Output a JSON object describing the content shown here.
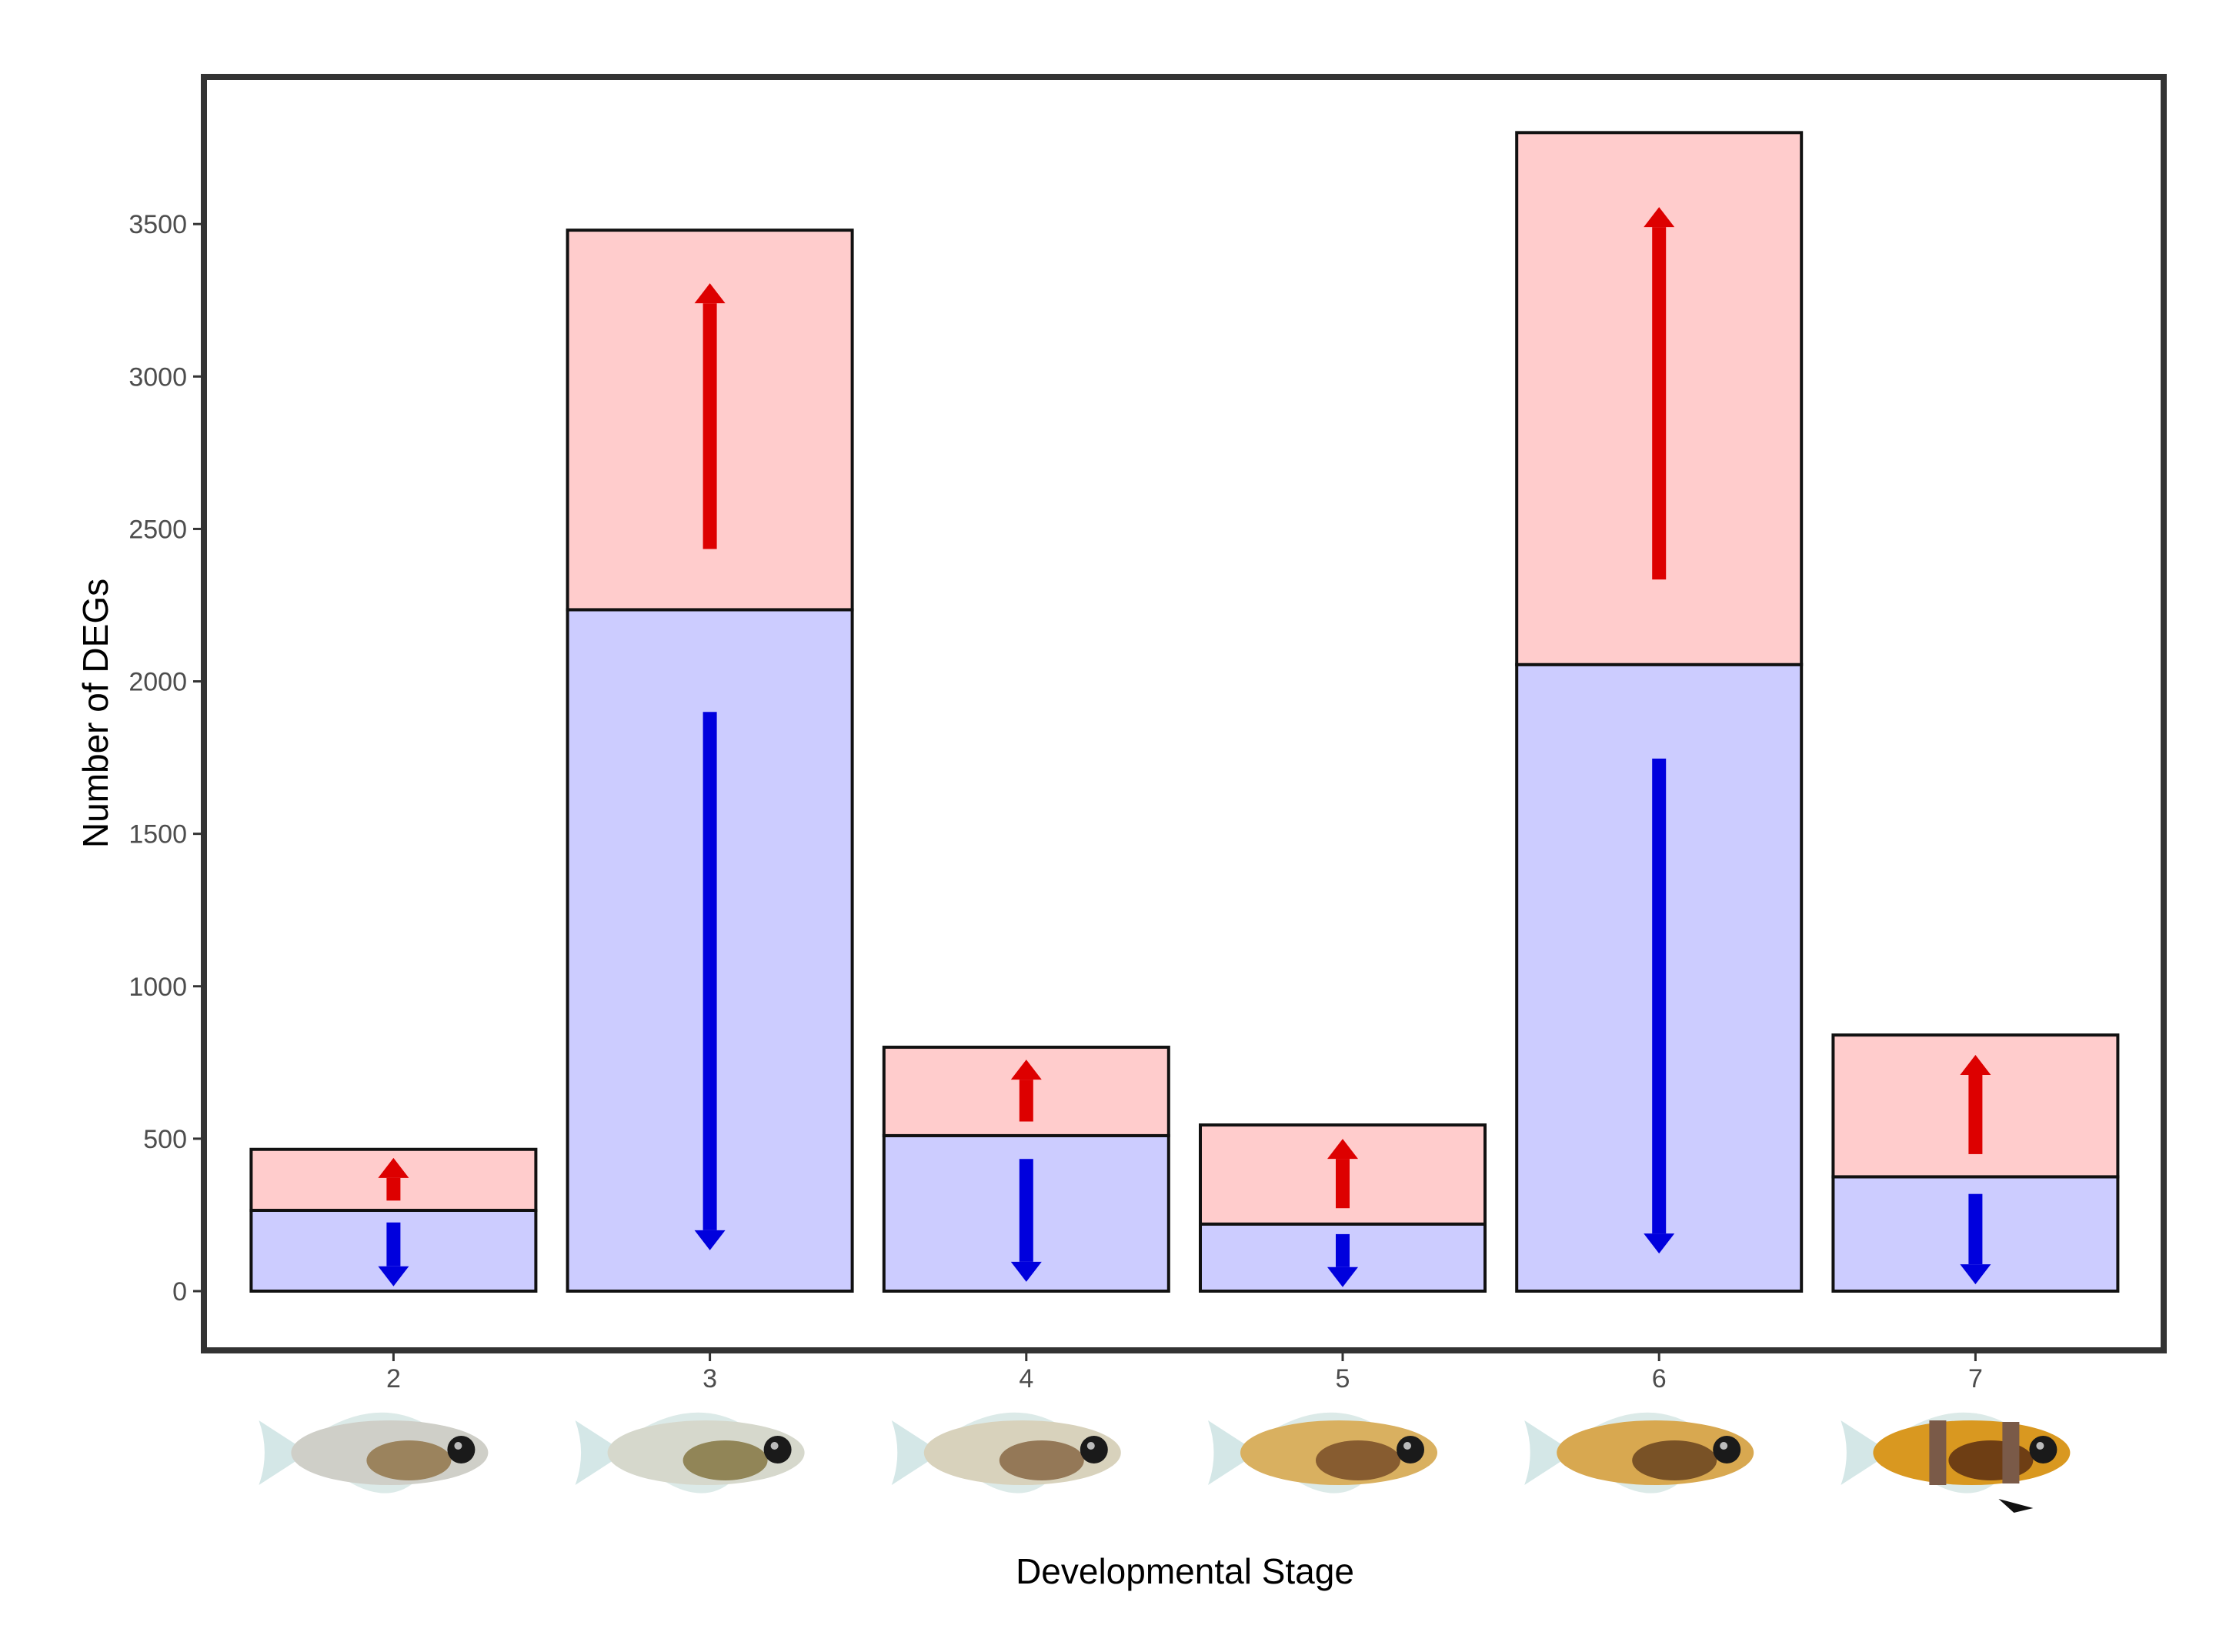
{
  "chart_data": {
    "type": "bar",
    "stacked": true,
    "title": "",
    "xlabel": "Developmental Stage",
    "ylabel": "Number of DEGs",
    "categories": [
      "2",
      "3",
      "4",
      "5",
      "6",
      "7"
    ],
    "ylim": [
      -200,
      4000
    ],
    "yticks": [
      0,
      500,
      1000,
      1500,
      2000,
      2500,
      3000,
      3500
    ],
    "grid": false,
    "legend": "none",
    "series": [
      {
        "direction": "down",
        "color": "#ccccff",
        "arrow_color": "#0000dd",
        "values": [
          265,
          2235,
          510,
          220,
          2055,
          375
        ]
      },
      {
        "direction": "up",
        "color": "#ffcccc",
        "arrow_color": "#dd0000",
        "values": [
          200,
          1245,
          290,
          325,
          1745,
          465
        ]
      }
    ],
    "stage_images": [
      {
        "stage": "2",
        "icon": "fish-larva-stage-2-icon",
        "body_color": "#cfcfc8",
        "accent_color": "#8a6a3a"
      },
      {
        "stage": "3",
        "icon": "fish-larva-stage-3-icon",
        "body_color": "#d6d8cc",
        "accent_color": "#7a6a30"
      },
      {
        "stage": "4",
        "icon": "fish-larva-stage-4-icon",
        "body_color": "#d8d2bc",
        "accent_color": "#7d5a35"
      },
      {
        "stage": "5",
        "icon": "fish-larva-stage-5-icon",
        "body_color": "#d9b060",
        "accent_color": "#6b4020"
      },
      {
        "stage": "6",
        "icon": "fish-larva-stage-6-icon",
        "body_color": "#d8a850",
        "accent_color": "#5a3518"
      },
      {
        "stage": "7",
        "icon": "clownfish-juvenile-stage-7-icon",
        "body_color": "#d99820",
        "accent_color": "#4a2010"
      }
    ]
  }
}
